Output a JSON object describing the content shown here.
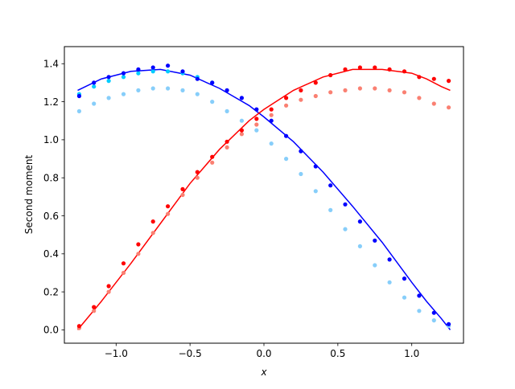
{
  "chart_data": {
    "type": "scatter",
    "title": "",
    "xlabel": "x",
    "ylabel": "Second moment",
    "xlim": [
      -1.35,
      1.35
    ],
    "ylim": [
      -0.07,
      1.49
    ],
    "xticks": [
      -1.0,
      -0.5,
      0.0,
      0.5,
      1.0
    ],
    "xtick_labels": [
      "−1.0",
      "−0.5",
      "0.0",
      "0.5",
      "1.0"
    ],
    "yticks": [
      0.0,
      0.2,
      0.4,
      0.6,
      0.8,
      1.0,
      1.2,
      1.4
    ],
    "ytick_labels": [
      "0.0",
      "0.2",
      "0.4",
      "0.6",
      "0.8",
      "1.0",
      "1.2",
      "1.4"
    ],
    "grid": false,
    "legend": "none",
    "series": [
      {
        "kind": "line",
        "color": "#0000ff",
        "x": [
          -1.26,
          -1.1,
          -0.9,
          -0.7,
          -0.5,
          -0.3,
          -0.1,
          0.0,
          0.2,
          0.4,
          0.6,
          0.8,
          1.0,
          1.1,
          1.2,
          1.26
        ],
        "y": [
          1.26,
          1.32,
          1.36,
          1.37,
          1.34,
          1.27,
          1.18,
          1.12,
          0.99,
          0.83,
          0.65,
          0.46,
          0.25,
          0.15,
          0.06,
          0.0
        ]
      },
      {
        "kind": "line",
        "color": "#ff0000",
        "x": [
          -1.26,
          -1.1,
          -0.9,
          -0.7,
          -0.5,
          -0.3,
          -0.1,
          0.0,
          0.2,
          0.4,
          0.6,
          0.8,
          1.0,
          1.1,
          1.2,
          1.26
        ],
        "y": [
          0.0,
          0.15,
          0.35,
          0.56,
          0.77,
          0.95,
          1.1,
          1.16,
          1.26,
          1.33,
          1.37,
          1.37,
          1.35,
          1.32,
          1.28,
          1.26
        ]
      },
      {
        "kind": "points",
        "color": "#87cefa",
        "x": [
          -1.25,
          -1.15,
          -1.05,
          -0.95,
          -0.85,
          -0.75,
          -0.65,
          -0.55,
          -0.45,
          -0.35,
          -0.25,
          -0.15,
          -0.05,
          0.05,
          0.15,
          0.25,
          0.35,
          0.45,
          0.55,
          0.65,
          0.75,
          0.85,
          0.95,
          1.05,
          1.15,
          1.25
        ],
        "y": [
          1.15,
          1.19,
          1.22,
          1.24,
          1.26,
          1.27,
          1.27,
          1.26,
          1.24,
          1.2,
          1.15,
          1.1,
          1.05,
          0.98,
          0.9,
          0.82,
          0.73,
          0.63,
          0.53,
          0.44,
          0.34,
          0.25,
          0.17,
          0.1,
          0.05,
          0.02
        ]
      },
      {
        "kind": "points",
        "color": "#00ccff",
        "x": [
          -1.25,
          -1.15,
          -1.05,
          -0.95,
          -0.85,
          -0.75,
          -0.65,
          -0.55,
          -0.45,
          -0.35
        ],
        "y": [
          1.24,
          1.28,
          1.31,
          1.33,
          1.35,
          1.36,
          1.36,
          1.35,
          1.33,
          1.3
        ]
      },
      {
        "kind": "points",
        "color": "#0000ff",
        "x": [
          -1.25,
          -1.15,
          -1.05,
          -0.95,
          -0.85,
          -0.75,
          -0.65,
          -0.55,
          -0.45,
          -0.35,
          -0.25,
          -0.15,
          -0.05,
          0.05,
          0.15,
          0.25,
          0.35,
          0.45,
          0.55,
          0.65,
          0.75,
          0.85,
          0.95,
          1.05,
          1.15,
          1.25
        ],
        "y": [
          1.23,
          1.3,
          1.33,
          1.35,
          1.37,
          1.38,
          1.39,
          1.36,
          1.32,
          1.3,
          1.26,
          1.22,
          1.16,
          1.1,
          1.02,
          0.94,
          0.86,
          0.76,
          0.66,
          0.57,
          0.47,
          0.37,
          0.27,
          0.18,
          0.09,
          0.03
        ]
      },
      {
        "kind": "points",
        "color": "#fa8072",
        "x": [
          -1.25,
          -1.15,
          -1.05,
          -0.95,
          -0.85,
          -0.75,
          -0.65,
          -0.55,
          -0.45,
          -0.35,
          -0.25,
          -0.15,
          -0.05,
          0.05,
          0.15,
          0.25,
          0.35,
          0.45,
          0.55,
          0.65,
          0.75,
          0.85,
          0.95,
          1.05,
          1.15,
          1.25
        ],
        "y": [
          0.01,
          0.1,
          0.2,
          0.3,
          0.4,
          0.51,
          0.61,
          0.71,
          0.8,
          0.88,
          0.96,
          1.03,
          1.08,
          1.13,
          1.18,
          1.21,
          1.23,
          1.25,
          1.26,
          1.27,
          1.27,
          1.26,
          1.25,
          1.22,
          1.19,
          1.17
        ]
      },
      {
        "kind": "points",
        "color": "#ff0000",
        "x": [
          -1.25,
          -1.15,
          -1.05,
          -0.95,
          -0.85,
          -0.75,
          -0.65,
          -0.55,
          -0.45,
          -0.35,
          -0.25,
          -0.15,
          -0.05,
          0.05,
          0.15,
          0.25,
          0.35,
          0.45,
          0.55,
          0.65,
          0.75,
          0.85,
          0.95,
          1.05,
          1.15,
          1.25
        ],
        "y": [
          0.02,
          0.12,
          0.23,
          0.35,
          0.45,
          0.57,
          0.65,
          0.74,
          0.83,
          0.91,
          0.99,
          1.05,
          1.11,
          1.16,
          1.22,
          1.26,
          1.3,
          1.34,
          1.37,
          1.38,
          1.38,
          1.37,
          1.36,
          1.33,
          1.32,
          1.31
        ]
      }
    ]
  }
}
